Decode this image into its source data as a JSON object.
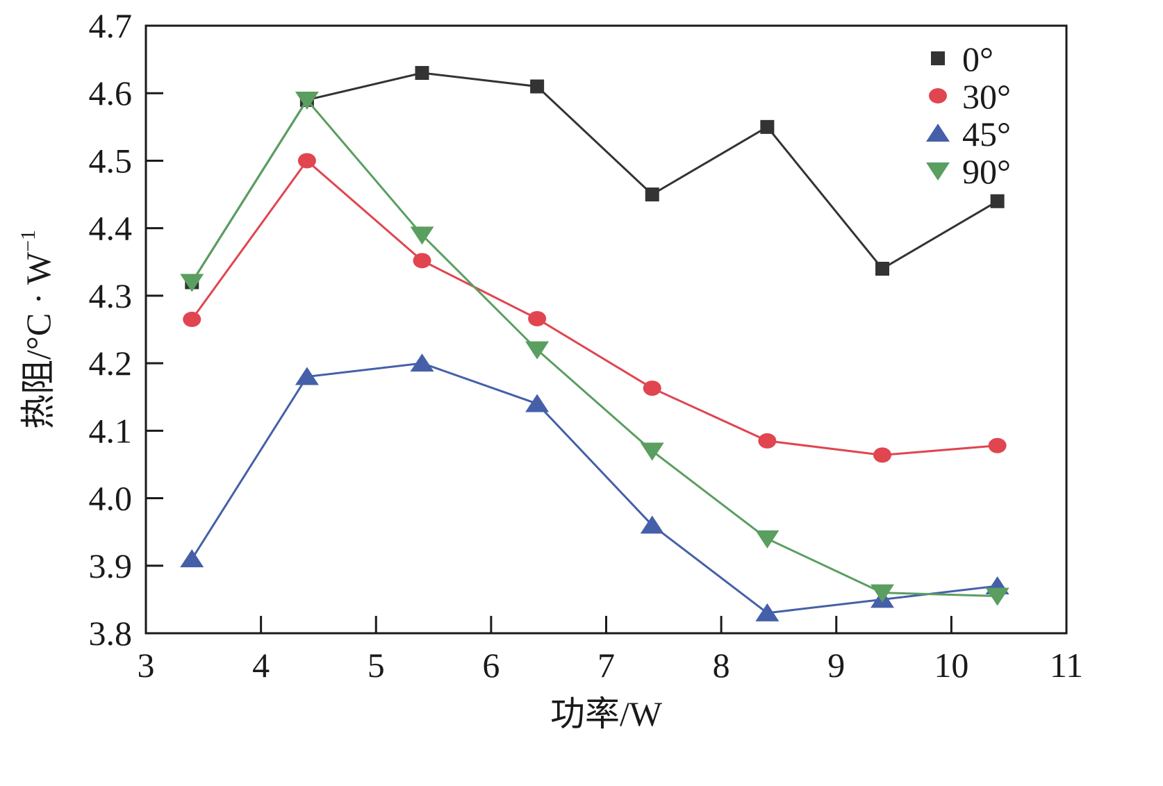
{
  "chart_data": {
    "type": "line",
    "xlabel": "功率/W",
    "ylabel_main": "热阻/°C · W",
    "ylabel_sup": "−1",
    "xlim": [
      3,
      11
    ],
    "ylim": [
      3.8,
      4.7
    ],
    "x_ticks": [
      3,
      4,
      5,
      6,
      7,
      8,
      9,
      10,
      11
    ],
    "y_ticks": [
      3.8,
      3.9,
      4.0,
      4.1,
      4.2,
      4.3,
      4.4,
      4.5,
      4.6,
      4.7
    ],
    "x_tick_labels": [
      "3",
      "4",
      "5",
      "6",
      "7",
      "8",
      "9",
      "10",
      "11"
    ],
    "y_tick_labels": [
      "3.8",
      "3.9",
      "4.0",
      "4.1",
      "4.2",
      "4.3",
      "4.4",
      "4.5",
      "4.6",
      "4.7"
    ],
    "x": [
      3.4,
      4.4,
      5.4,
      6.4,
      7.4,
      8.4,
      9.4,
      10.4
    ],
    "grid": false,
    "legend_position": "top-right",
    "series": [
      {
        "name": "0°",
        "marker": "square",
        "color": "#333333",
        "values": [
          4.32,
          4.59,
          4.63,
          4.61,
          4.45,
          4.55,
          4.34,
          4.44
        ]
      },
      {
        "name": "30°",
        "marker": "circle",
        "color": "#e04550",
        "values": [
          4.265,
          4.5,
          4.352,
          4.266,
          4.163,
          4.085,
          4.064,
          4.078
        ]
      },
      {
        "name": "45°",
        "marker": "triangle-up",
        "color": "#4560a8",
        "values": [
          3.91,
          4.18,
          4.2,
          4.14,
          3.96,
          3.83,
          3.85,
          3.87
        ]
      },
      {
        "name": "90°",
        "marker": "triangle-down",
        "color": "#5a9e60",
        "values": [
          4.32,
          4.59,
          4.39,
          4.22,
          4.07,
          3.94,
          3.86,
          3.855
        ]
      }
    ]
  }
}
